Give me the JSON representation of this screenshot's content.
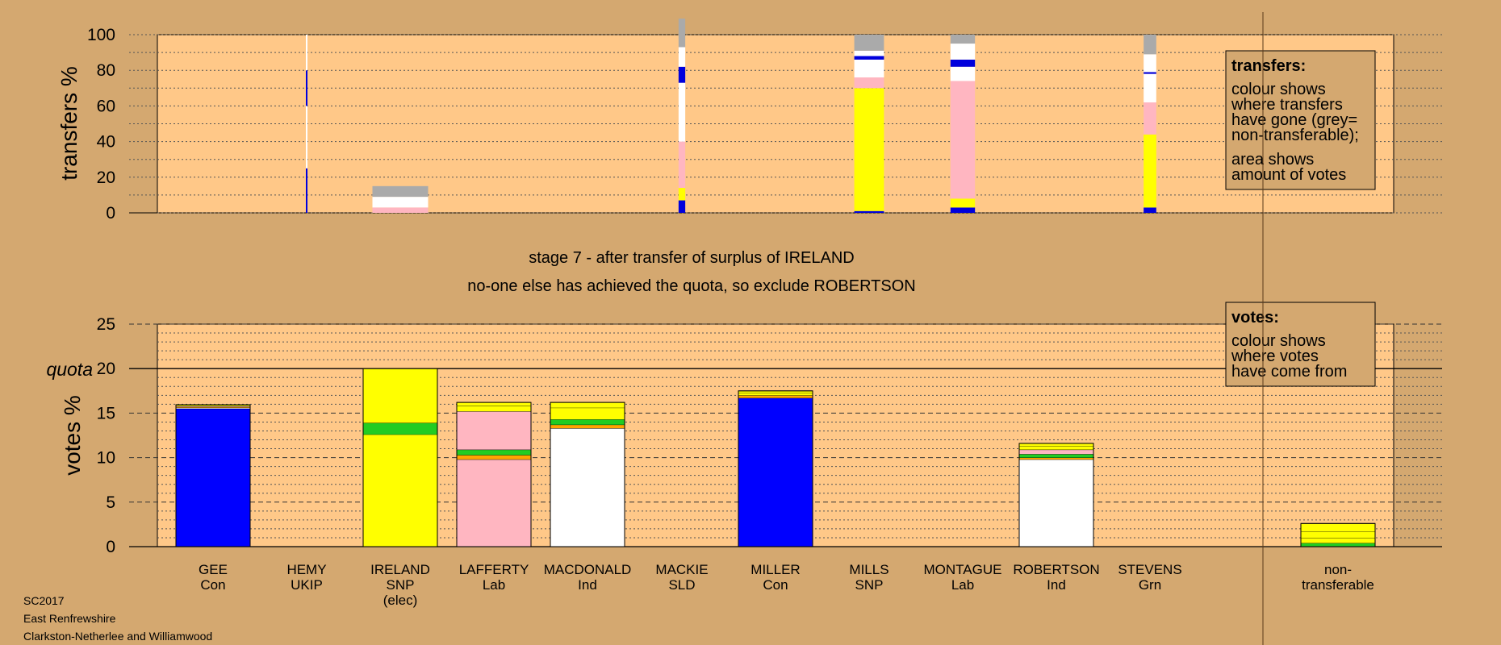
{
  "chart_data": [
    {
      "type": "bar",
      "stacked": true,
      "ylabel": "transfers %",
      "ylim": [
        0,
        100
      ],
      "yticks": [
        0,
        20,
        40,
        60,
        80,
        100
      ],
      "grid": true,
      "categories": [
        "GEE",
        "HEMY",
        "IRELAND",
        "LAFFERTY",
        "MACDONALD",
        "MACKIE",
        "MILLER",
        "MILLS",
        "MONTAGUE",
        "ROBERTSON",
        "STEVENS"
      ],
      "bars": [
        {
          "category": "HEMY",
          "width": 0.02,
          "segments": [
            {
              "color": "#0000dd",
              "value": 25
            },
            {
              "color": "#ffffff",
              "value": 35
            },
            {
              "color": "#0000dd",
              "value": 20
            },
            {
              "color": "#ffffff",
              "value": 20
            }
          ]
        },
        {
          "category": "IRELAND",
          "width": 0.75,
          "segments": [
            {
              "color": "#ffb6c1",
              "value": 3
            },
            {
              "color": "#ffffff",
              "value": 6
            },
            {
              "color": "#aaaaaa",
              "value": 6
            }
          ]
        },
        {
          "category": "MACKIE",
          "width": 0.09,
          "segments": [
            {
              "color": "#0000dd",
              "value": 7
            },
            {
              "color": "#ffff00",
              "value": 7
            },
            {
              "color": "#ffb6c1",
              "value": 26
            },
            {
              "color": "#ffffff",
              "value": 33
            },
            {
              "color": "#0000dd",
              "value": 9
            },
            {
              "color": "#ffffff",
              "value": 11
            },
            {
              "color": "#aaaaaa",
              "value": 16
            }
          ]
        },
        {
          "category": "MILLS",
          "width": 0.4,
          "segments": [
            {
              "color": "#0000dd",
              "value": 1
            },
            {
              "color": "#ffff00",
              "value": 69
            },
            {
              "color": "#ffb6c1",
              "value": 6
            },
            {
              "color": "#ffffff",
              "value": 10
            },
            {
              "color": "#0000dd",
              "value": 2
            },
            {
              "color": "#ffffff",
              "value": 3
            },
            {
              "color": "#aaaaaa",
              "value": 9
            }
          ]
        },
        {
          "category": "MONTAGUE",
          "width": 0.33,
          "segments": [
            {
              "color": "#0000dd",
              "value": 3
            },
            {
              "color": "#ffff00",
              "value": 5
            },
            {
              "color": "#ffb6c1",
              "value": 66
            },
            {
              "color": "#ffffff",
              "value": 8
            },
            {
              "color": "#0000dd",
              "value": 4
            },
            {
              "color": "#ffffff",
              "value": 9
            },
            {
              "color": "#aaaaaa",
              "value": 5
            }
          ]
        },
        {
          "category": "STEVENS",
          "width": 0.17,
          "segments": [
            {
              "color": "#0000dd",
              "value": 3
            },
            {
              "color": "#ffff00",
              "value": 41
            },
            {
              "color": "#ffb6c1",
              "value": 18
            },
            {
              "color": "#ffffff",
              "value": 16
            },
            {
              "color": "#0000dd",
              "value": 1
            },
            {
              "color": "#ffffff",
              "value": 10
            },
            {
              "color": "#aaaaaa",
              "value": 11
            }
          ]
        }
      ]
    },
    {
      "type": "bar",
      "stacked": true,
      "ylabel": "votes %",
      "ylim": [
        0,
        25
      ],
      "yticks": [
        0,
        5,
        10,
        15,
        20,
        25
      ],
      "quota": 20,
      "quota_label": "quota",
      "grid": true,
      "categories": [
        "GEE",
        "HEMY",
        "IRELAND",
        "LAFFERTY",
        "MACDONALD",
        "MACKIE",
        "MILLER",
        "MILLS",
        "MONTAGUE",
        "ROBERTSON",
        "STEVENS",
        "non-transferable"
      ],
      "bars": [
        {
          "category": "GEE",
          "segments": [
            {
              "color": "#0000ff",
              "value": 15.5
            },
            {
              "color": "#ffffff",
              "value": 0.1
            },
            {
              "color": "#ffa500",
              "value": 0.1
            },
            {
              "color": "#ffb6c1",
              "value": 0.1
            },
            {
              "color": "#ffff00",
              "value": 0.15
            }
          ]
        },
        {
          "category": "IRELAND",
          "segments": [
            {
              "color": "#ffff00",
              "value": 12.6
            },
            {
              "color": "#22cc22",
              "value": 1.3
            },
            {
              "color": "#ffff00",
              "value": 6.1
            }
          ]
        },
        {
          "category": "LAFFERTY",
          "segments": [
            {
              "color": "#ffb6c1",
              "value": 9.8
            },
            {
              "color": "#ffa500",
              "value": 0.5
            },
            {
              "color": "#22cc22",
              "value": 0.6
            },
            {
              "color": "#ffb6c1",
              "value": 4.3
            },
            {
              "color": "#ffff00",
              "value": 0.6
            },
            {
              "color": "#ffff00",
              "value": 0.4
            }
          ]
        },
        {
          "category": "MACDONALD",
          "segments": [
            {
              "color": "#ffffff",
              "value": 13.3
            },
            {
              "color": "#ffa500",
              "value": 0.4
            },
            {
              "color": "#22cc22",
              "value": 0.6
            },
            {
              "color": "#ffff00",
              "value": 1.3
            },
            {
              "color": "#ffff00",
              "value": 0.6
            }
          ]
        },
        {
          "category": "MILLER",
          "segments": [
            {
              "color": "#0000ff",
              "value": 16.7
            },
            {
              "color": "#ffa500",
              "value": 0.3
            },
            {
              "color": "#ffff00",
              "value": 0.3
            },
            {
              "color": "#ffff00",
              "value": 0.2
            }
          ]
        },
        {
          "category": "ROBERTSON",
          "segments": [
            {
              "color": "#ffffff",
              "value": 9.8
            },
            {
              "color": "#ffa500",
              "value": 0.2
            },
            {
              "color": "#22cc22",
              "value": 0.4
            },
            {
              "color": "#ffb6c1",
              "value": 0.5
            },
            {
              "color": "#ffff00",
              "value": 0.4
            },
            {
              "color": "#ffff00",
              "value": 0.3
            }
          ]
        },
        {
          "category": "non-transferable",
          "segments": [
            {
              "color": "#22cc22",
              "value": 0.4
            },
            {
              "color": "#ffff00",
              "value": 0.6
            },
            {
              "color": "#ffff00",
              "value": 0.7
            },
            {
              "color": "#ffff00",
              "value": 0.9
            }
          ]
        }
      ]
    }
  ],
  "candidates": [
    {
      "name": "GEE",
      "party": "Con",
      "extra": ""
    },
    {
      "name": "HEMY",
      "party": "UKIP",
      "extra": ""
    },
    {
      "name": "IRELAND",
      "party": "SNP",
      "extra": "(elec)"
    },
    {
      "name": "LAFFERTY",
      "party": "Lab",
      "extra": ""
    },
    {
      "name": "MACDONALD",
      "party": "Ind",
      "extra": ""
    },
    {
      "name": "MACKIE",
      "party": "SLD",
      "extra": ""
    },
    {
      "name": "MILLER",
      "party": "Con",
      "extra": ""
    },
    {
      "name": "MILLS",
      "party": "SNP",
      "extra": ""
    },
    {
      "name": "MONTAGUE",
      "party": "Lab",
      "extra": ""
    },
    {
      "name": "ROBERTSON",
      "party": "Ind",
      "extra": ""
    },
    {
      "name": "STEVENS",
      "party": "Grn",
      "extra": ""
    }
  ],
  "nontransferable_label": {
    "line1": "non-",
    "line2": "transferable"
  },
  "stage_line1": "stage 7 - after transfer of surplus of IRELAND",
  "stage_line2": "no-one else has achieved the quota, so exclude ROBERTSON",
  "legend_transfers": {
    "title": "transfers:",
    "lines": [
      "colour shows",
      "where transfers",
      "have gone (grey=",
      "non-transferable);",
      "area shows",
      "amount of votes"
    ]
  },
  "legend_votes": {
    "title": "votes:",
    "lines": [
      "colour shows",
      "where votes",
      "have come from"
    ]
  },
  "footer": [
    "SC2017",
    "East Renfrewshire",
    "Clarkston-Netherlee and Williamwood"
  ],
  "colors": {
    "background": "#d4a870",
    "plot_area": "#ffc888",
    "grey": "#aaaaaa",
    "con": "#0000ff",
    "snp": "#ffff00",
    "lab": "#ffb6c1",
    "ind": "#ffffff",
    "grn": "#22cc22",
    "ukip": "#ffa500"
  }
}
